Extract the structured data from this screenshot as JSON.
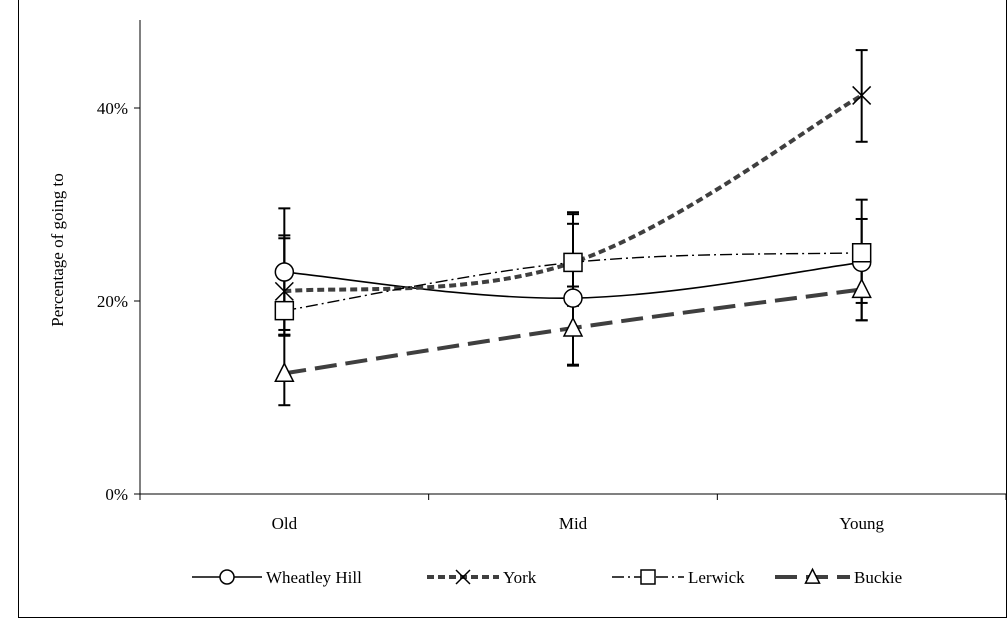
{
  "chart_data": {
    "type": "line",
    "categories": [
      "Old",
      "Mid",
      "Young"
    ],
    "ylabel": "Percentage of going to",
    "ylim": [
      0,
      0.45
    ],
    "yticks": [
      {
        "value": 0,
        "label": "0%"
      },
      {
        "value": 0.2,
        "label": "20%"
      },
      {
        "value": 0.4,
        "label": "40%"
      }
    ],
    "grid": false,
    "legend_position": "bottom",
    "series": [
      {
        "name": "Wheatley Hill",
        "values": [
          0.23,
          0.203,
          0.24
        ],
        "error_bars": [
          [
            0.164,
            0.296
          ],
          [
            0.134,
            0.28
          ],
          [
            0.18,
            0.285
          ]
        ],
        "marker": "circle",
        "line_style": "solid",
        "color": "#000000"
      },
      {
        "name": "York",
        "values": [
          0.21,
          0.24,
          0.413
        ],
        "error_bars": [
          [
            0.17,
            0.265
          ],
          [
            0.195,
            0.292
          ],
          [
            0.365,
            0.46
          ]
        ],
        "marker": "x",
        "line_style": "short-dash",
        "color": "#3f3f3f"
      },
      {
        "name": "Lerwick",
        "values": [
          0.19,
          0.24,
          0.25
        ],
        "error_bars": [
          [
            0.165,
            0.268
          ],
          [
            0.196,
            0.29
          ],
          [
            0.198,
            0.305
          ]
        ],
        "marker": "square",
        "line_style": "dash-dot",
        "color": "#000000"
      },
      {
        "name": "Buckie",
        "values": [
          0.125,
          0.172,
          0.212
        ],
        "error_bars": [
          [
            0.092,
            0.165
          ],
          [
            0.133,
            0.215
          ],
          [
            0.18,
            0.25
          ]
        ],
        "marker": "triangle",
        "line_style": "long-dash",
        "color": "#3f3f3f"
      }
    ]
  }
}
